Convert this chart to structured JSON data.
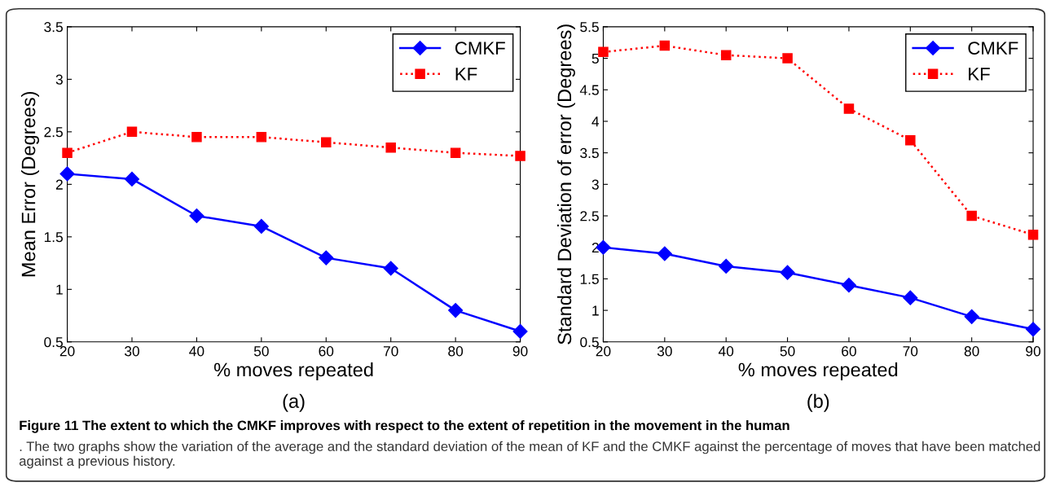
{
  "chart_data": [
    {
      "type": "line",
      "xlabel": "% moves repeated",
      "ylabel": "Mean Error (Degrees)",
      "x": [
        20,
        30,
        40,
        50,
        60,
        70,
        80,
        90
      ],
      "series": [
        {
          "name": "CMKF",
          "color": "#0000ff",
          "marker": "diamond",
          "line_style": "solid",
          "values": [
            2.1,
            2.05,
            1.7,
            1.6,
            1.3,
            1.2,
            0.8,
            0.6
          ]
        },
        {
          "name": "KF",
          "color": "#ff0000",
          "marker": "square",
          "line_style": "dotted",
          "values": [
            2.3,
            2.5,
            2.45,
            2.45,
            2.4,
            2.35,
            2.3,
            2.27
          ]
        }
      ],
      "xlim": [
        20,
        90
      ],
      "xticks": [
        20,
        30,
        40,
        50,
        60,
        70,
        80,
        90
      ],
      "ylim": [
        0.5,
        3.5
      ],
      "yticks": [
        0.5,
        1,
        1.5,
        2,
        2.5,
        3,
        3.5
      ],
      "grid": false,
      "legend": "top right",
      "annotations": [
        "(a)",
        "Figure 11 The extent to which the CMKF improves with respect to the extent of repetition in the movement in the human",
        ". The two graphs show the variation of the average and the standard deviation of the mean of KF and the CMKF against the percentage of moves that have been matched against a previous history."
      ]
    },
    {
      "type": "line",
      "xlabel": "% moves repeated",
      "ylabel": "Standard Deviation of error (Degrees)",
      "x": [
        20,
        30,
        40,
        50,
        60,
        70,
        80,
        90
      ],
      "series": [
        {
          "name": "CMKF",
          "color": "#0000ff",
          "marker": "diamond",
          "line_style": "solid",
          "values": [
            2.0,
            1.9,
            1.7,
            1.6,
            1.4,
            1.2,
            0.9,
            0.7
          ]
        },
        {
          "name": "KF",
          "color": "#ff0000",
          "marker": "square",
          "line_style": "dotted",
          "values": [
            5.1,
            5.2,
            5.05,
            5.0,
            4.2,
            3.7,
            2.5,
            2.2
          ]
        }
      ],
      "xlim": [
        20,
        90
      ],
      "xticks": [
        20,
        30,
        40,
        50,
        60,
        70,
        80,
        90
      ],
      "ylim": [
        0.5,
        5.5
      ],
      "yticks": [
        0.5,
        1,
        1.5,
        2,
        2.5,
        3,
        3.5,
        4,
        4.5,
        5,
        5.5
      ],
      "grid": false,
      "legend": "top right",
      "annotations": [
        "(b)"
      ]
    }
  ]
}
